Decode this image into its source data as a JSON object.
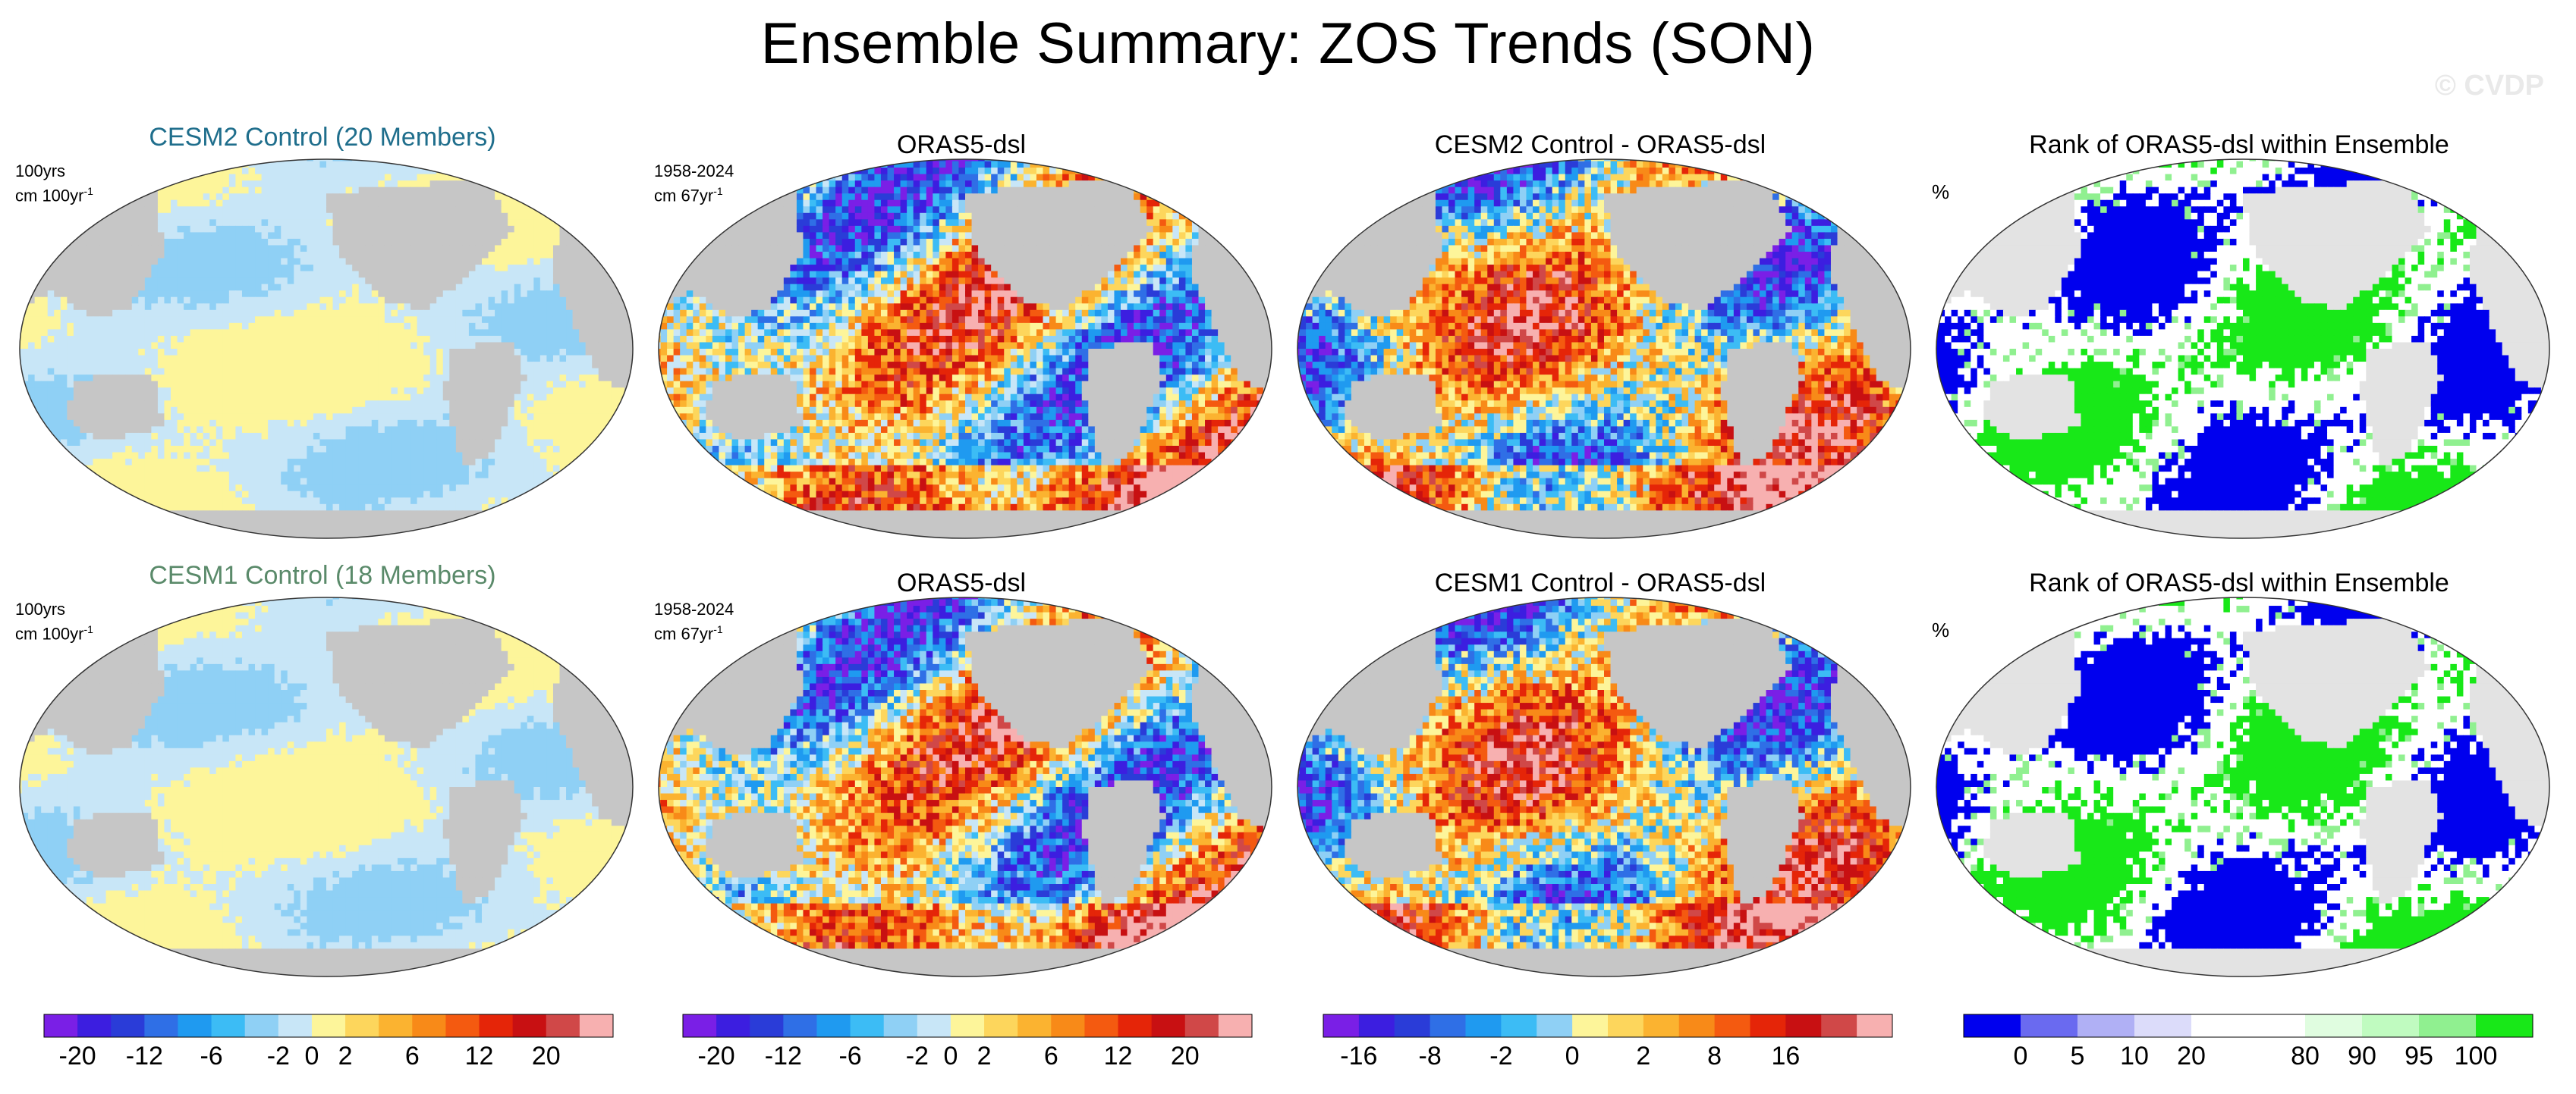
{
  "title": "Ensemble Summary: ZOS Trends (SON)",
  "watermark": "© CVDP",
  "colors": {
    "ocean_gray": "#c8c8c8",
    "land_gray": "#c6c6c6",
    "rank_land_gray": "#e3e3e3",
    "cesm2_title_color": "#1f6e8c",
    "cesm1_title_color": "#5a8a6a"
  },
  "rows": [
    {
      "panels": [
        {
          "title": "CESM2 Control (20 Members)",
          "label1": "100yrs",
          "label2": "cm 100yr",
          "sup": "-1",
          "kind": "mean"
        },
        {
          "title": "ORAS5-dsl",
          "label1": "1958-2024",
          "label2": "cm 67yr",
          "sup": "-1",
          "kind": "obs"
        },
        {
          "title": "CESM2 Control - ORAS5-dsl",
          "label1": "",
          "label2": "",
          "sup": "",
          "kind": "diff"
        },
        {
          "title": "Rank of ORAS5-dsl within Ensemble",
          "label1": "%",
          "label2": "",
          "sup": "",
          "kind": "rank"
        }
      ]
    },
    {
      "panels": [
        {
          "title": "CESM1 Control (18 Members)",
          "label1": "100yrs",
          "label2": "cm 100yr",
          "sup": "-1",
          "kind": "mean"
        },
        {
          "title": "ORAS5-dsl",
          "label1": "1958-2024",
          "label2": "cm 67yr",
          "sup": "-1",
          "kind": "obs"
        },
        {
          "title": "CESM1 Control - ORAS5-dsl",
          "label1": "",
          "label2": "",
          "sup": "",
          "kind": "diff"
        },
        {
          "title": "Rank of ORAS5-dsl within Ensemble",
          "label1": "%",
          "label2": "",
          "sup": "",
          "kind": "rank"
        }
      ]
    }
  ],
  "chart_data": [
    {
      "type": "colorbar",
      "colors": [
        "#7a1fe6",
        "#3c1ee0",
        "#2a3cd8",
        "#2f6fe6",
        "#1f9af0",
        "#3cbcf5",
        "#8fd0f5",
        "#c8e6f7",
        "#fdf59a",
        "#fdd65c",
        "#fbb330",
        "#f88a18",
        "#f45a10",
        "#e52508",
        "#c81012",
        "#d04848",
        "#f7b0b0"
      ],
      "tick_labels": [
        "-20",
        "-12",
        "-6",
        "-2",
        "0",
        "2",
        "6",
        "12",
        "20"
      ],
      "tick_boundaries": [
        1,
        3,
        5,
        7,
        8,
        9,
        11,
        13,
        15
      ]
    },
    {
      "type": "colorbar",
      "colors": [
        "#7a1fe6",
        "#3c1ee0",
        "#2a3cd8",
        "#2f6fe6",
        "#1f9af0",
        "#3cbcf5",
        "#8fd0f5",
        "#c8e6f7",
        "#fdf59a",
        "#fdd65c",
        "#fbb330",
        "#f88a18",
        "#f45a10",
        "#e52508",
        "#c81012",
        "#d04848",
        "#f7b0b0"
      ],
      "tick_labels": [
        "-20",
        "-12",
        "-6",
        "-2",
        "0",
        "2",
        "6",
        "12",
        "20"
      ],
      "tick_boundaries": [
        1,
        3,
        5,
        7,
        8,
        9,
        11,
        13,
        15
      ]
    },
    {
      "type": "colorbar",
      "colors": [
        "#7a1fe6",
        "#3c1ee0",
        "#2a3cd8",
        "#2f6fe6",
        "#1f9af0",
        "#3cbcf5",
        "#8fd0f5",
        "#fdf59a",
        "#fdd65c",
        "#fbb330",
        "#f88a18",
        "#f45a10",
        "#e52508",
        "#c81012",
        "#d04848",
        "#f7b0b0"
      ],
      "tick_labels": [
        "-16",
        "-8",
        "-2",
        "0",
        "2",
        "8",
        "16"
      ],
      "tick_boundaries": [
        1,
        3,
        5,
        7,
        9,
        11,
        13
      ]
    },
    {
      "type": "colorbar",
      "colors": [
        "#0000ee",
        "#6a6af0",
        "#b0b0f5",
        "#dcdcfa",
        "#ffffff",
        "#ffffff",
        "#e0fde0",
        "#c0fbc0",
        "#90f090",
        "#18e818"
      ],
      "tick_labels": [
        "0",
        "5",
        "10",
        "20",
        "80",
        "90",
        "95",
        "100"
      ],
      "tick_boundaries": [
        1,
        2,
        3,
        4,
        6,
        7,
        8,
        9
      ]
    }
  ]
}
